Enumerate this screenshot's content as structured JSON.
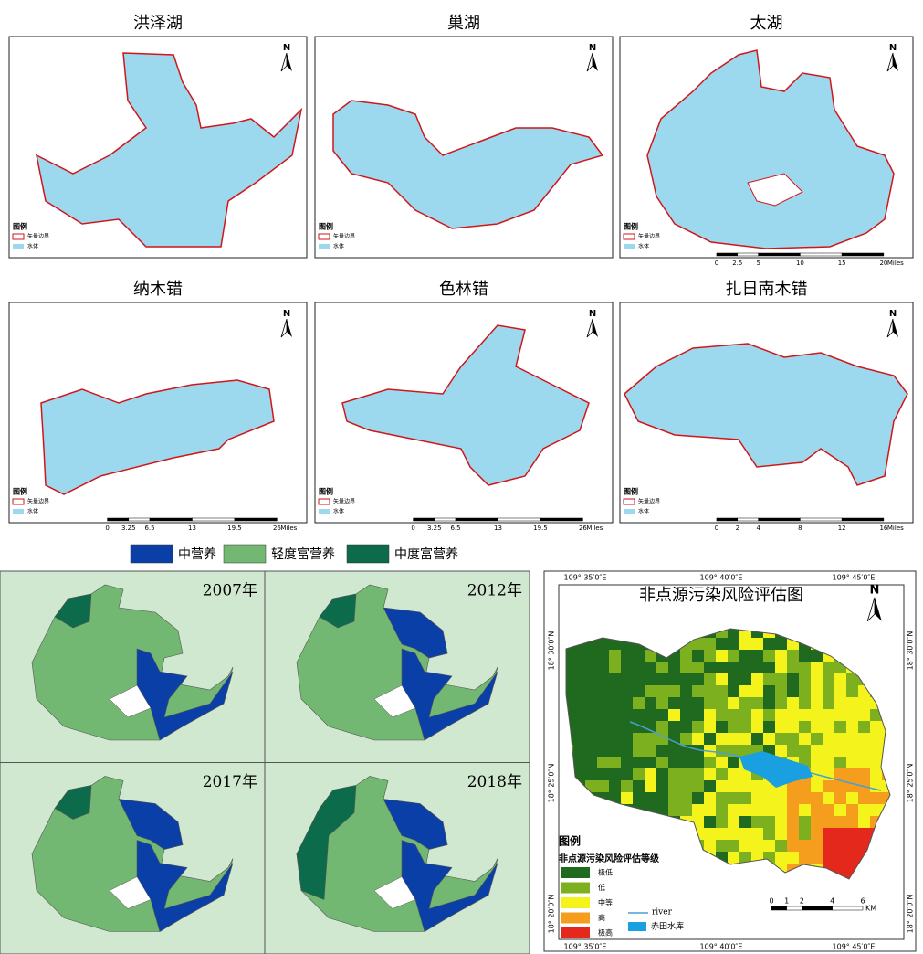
{
  "lake_maps": {
    "north": "N",
    "legend_title": "图例",
    "boundary": "矢量边界",
    "water": "水体",
    "panels": [
      {
        "title": "洪泽湖"
      },
      {
        "title": "巢湖"
      },
      {
        "title": "太湖",
        "scale": {
          "ticks": [
            0,
            2.5,
            5,
            10,
            15,
            20
          ],
          "unit": "Miles"
        }
      },
      {
        "title": "纳木错",
        "scale": {
          "ticks": [
            0,
            3.25,
            6.5,
            13,
            19.5,
            26
          ],
          "unit": "Miles"
        }
      },
      {
        "title": "色林错",
        "scale": {
          "ticks": [
            0,
            3.25,
            6.5,
            13,
            19.5,
            26
          ],
          "unit": "Miles"
        }
      },
      {
        "title": "扎日南木错",
        "scale": {
          "ticks": [
            0,
            2,
            4,
            8,
            12,
            16
          ],
          "unit": "Miles"
        }
      }
    ]
  },
  "trophic": {
    "legend": [
      {
        "label": "中营养",
        "color": "#0b3fa8"
      },
      {
        "label": "轻度富营养",
        "color": "#72b872"
      },
      {
        "label": "中度富营养",
        "color": "#0c6b4a"
      }
    ],
    "panels": [
      {
        "year": "2007年"
      },
      {
        "year": "2012年"
      },
      {
        "year": "2017年"
      },
      {
        "year": "2018年"
      }
    ]
  },
  "risk_map": {
    "title": "非点源污染风险评估图",
    "north": "N",
    "lon_labels": [
      "109° 35′0″E",
      "109° 40′0″E",
      "109° 45′0″E"
    ],
    "lat_labels": [
      "18° 30′0″N",
      "18° 25′0″N",
      "18° 20′0″N"
    ],
    "legend_title": "图例",
    "legend_subtitle": "非点源污染风险评估等级",
    "classes": [
      {
        "label": "极低",
        "color": "#1f6a1f"
      },
      {
        "label": "低",
        "color": "#7cb01e"
      },
      {
        "label": "中等",
        "color": "#f4f41c"
      },
      {
        "label": "高",
        "color": "#f59d1c"
      },
      {
        "label": "极高",
        "color": "#e5281c"
      }
    ],
    "river": {
      "label": "river",
      "color": "#4a9fd4"
    },
    "reservoir": {
      "label": "赤田水库",
      "color": "#1aa0e0"
    },
    "scale": {
      "ticks": [
        0,
        1,
        2,
        4,
        6
      ],
      "unit": "KM"
    }
  }
}
